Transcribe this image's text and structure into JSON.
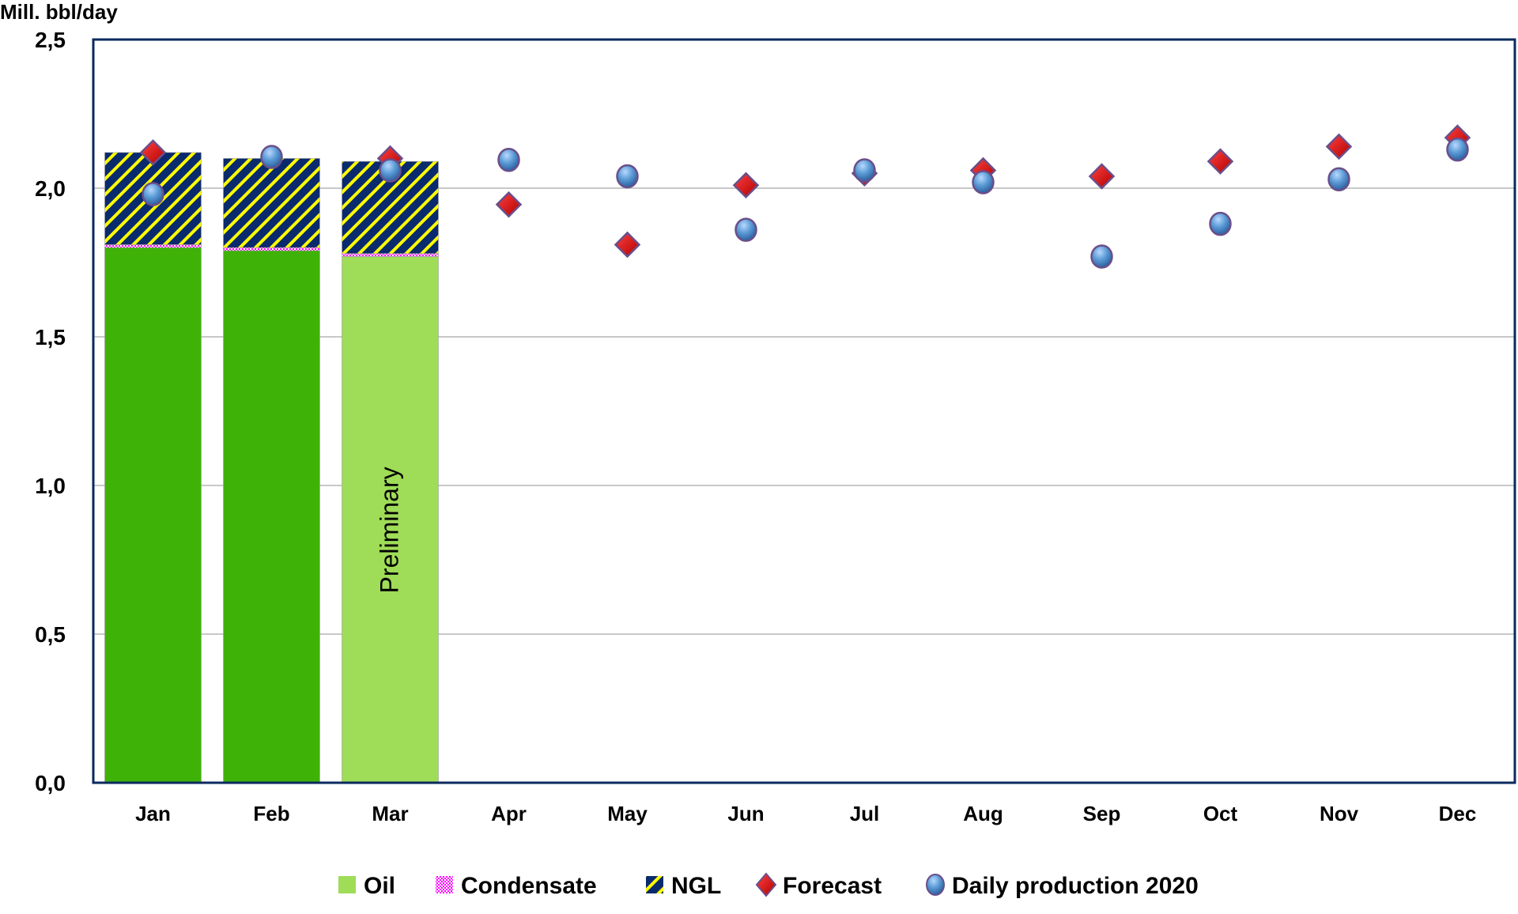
{
  "chart_data": {
    "type": "bar",
    "ylabel": "Mill. bbl/day",
    "ylim": [
      0,
      2.5
    ],
    "yticks": [
      "0,0",
      "0,5",
      "1,0",
      "1,5",
      "2,0",
      "2,5"
    ],
    "ytick_values": [
      0,
      0.5,
      1.0,
      1.5,
      2.0,
      2.5
    ],
    "grid": true,
    "legend_position": "bottom",
    "categories": [
      "Jan",
      "Feb",
      "Mar",
      "Apr",
      "May",
      "Jun",
      "Jul",
      "Aug",
      "Sep",
      "Oct",
      "Nov",
      "Dec"
    ],
    "annotation": "Preliminary",
    "annotation_category": "Mar",
    "series": [
      {
        "name": "Oil",
        "kind": "stacked-bar",
        "color": "#3fb208",
        "preliminary_color": "#9fdc58",
        "values": [
          1.8,
          1.79,
          1.77,
          null,
          null,
          null,
          null,
          null,
          null,
          null,
          null,
          null
        ]
      },
      {
        "name": "Condensate",
        "kind": "stacked-bar",
        "color": "#ff00ff",
        "values": [
          0.01,
          0.01,
          0.01,
          null,
          null,
          null,
          null,
          null,
          null,
          null,
          null,
          null
        ]
      },
      {
        "name": "NGL",
        "kind": "stacked-bar",
        "color": "#0a2a6e",
        "hatch_color": "#ffff00",
        "values": [
          0.31,
          0.3,
          0.31,
          null,
          null,
          null,
          null,
          null,
          null,
          null,
          null,
          null
        ]
      },
      {
        "name": "Forecast",
        "kind": "marker-diamond",
        "color": "#e00000",
        "values": [
          2.12,
          null,
          2.1,
          1.945,
          1.81,
          2.01,
          2.05,
          2.06,
          2.04,
          2.09,
          2.14,
          2.17
        ]
      },
      {
        "name": "Daily production 2020",
        "kind": "marker-circle",
        "color": "#5b9bd5",
        "values": [
          1.98,
          2.105,
          2.06,
          2.095,
          2.04,
          1.86,
          2.06,
          2.02,
          1.77,
          1.88,
          2.03,
          2.13
        ]
      }
    ]
  }
}
